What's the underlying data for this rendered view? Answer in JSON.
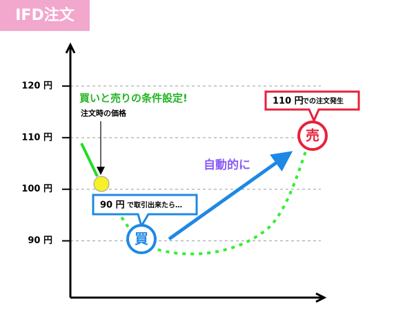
{
  "header": {
    "title": "IFD注文"
  },
  "chart_data": {
    "type": "diagram",
    "ylim": [
      79,
      128
    ],
    "yticks": [
      {
        "value": 90,
        "label": "90 円"
      },
      {
        "value": 100,
        "label": "100 円"
      },
      {
        "value": 110,
        "label": "110 円"
      },
      {
        "value": 120,
        "label": "120 円"
      }
    ],
    "annotations": {
      "condition": "買いと売りの条件設定!",
      "order_price": "注文時の価格",
      "buy_price": "90 円",
      "buy_text": "で取引出来たら…",
      "buy_mark": "買",
      "auto": "自動的に",
      "sell_price": "110 円",
      "sell_text": "での注文発生",
      "sell_mark": "売"
    }
  }
}
